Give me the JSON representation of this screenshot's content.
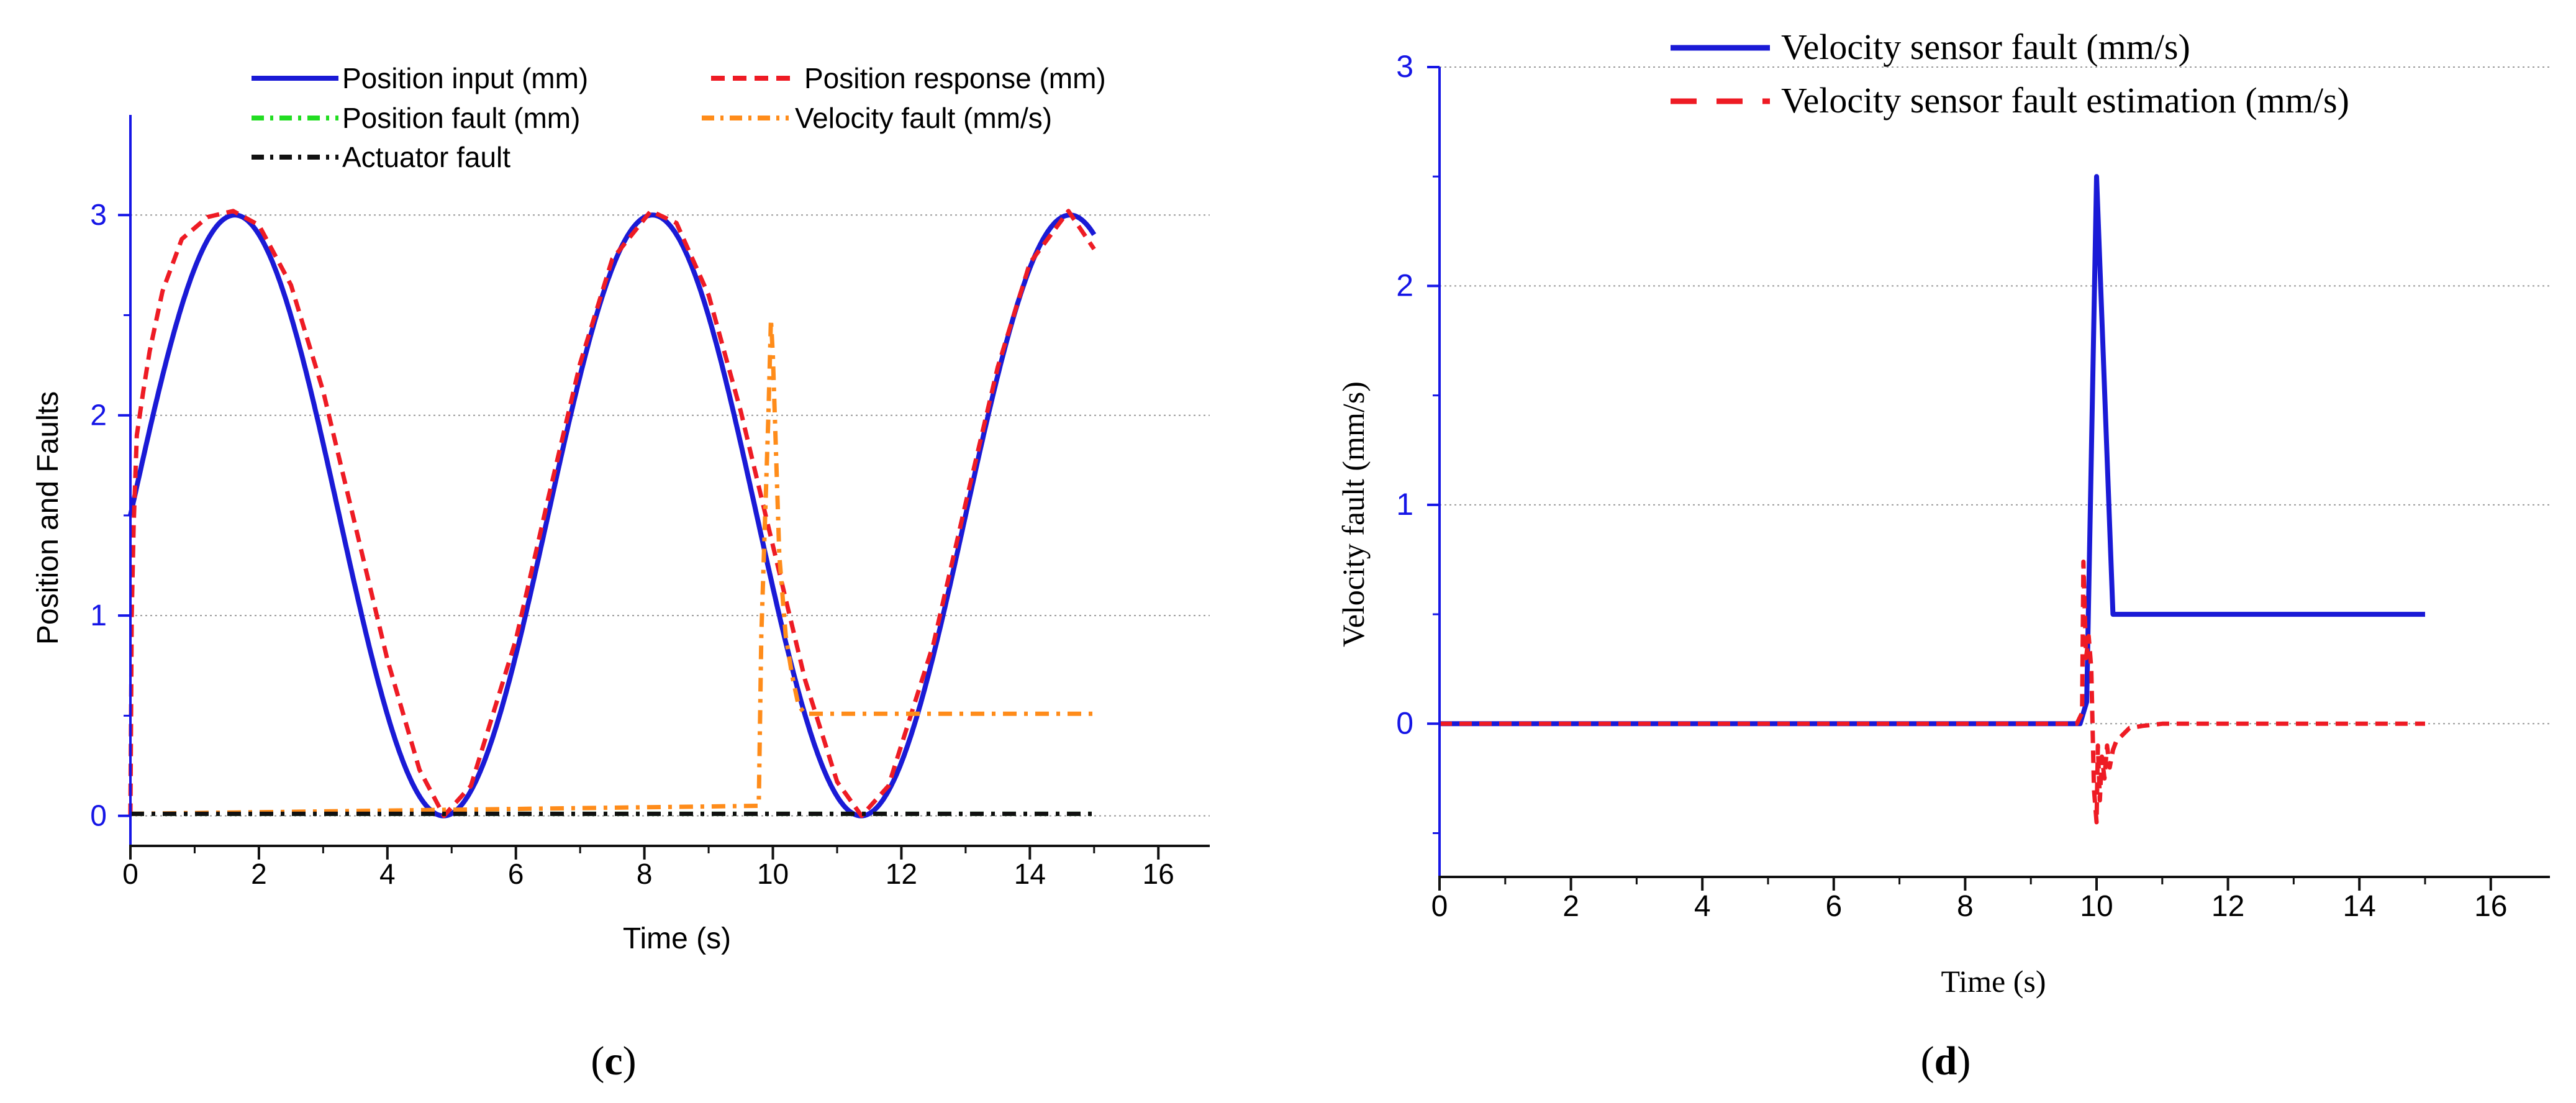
{
  "colors": {
    "axis_blue": "#1515e6",
    "input_blue": "#1a1ad6",
    "response_red": "#ee1b24",
    "pos_fault_green": "#22dd22",
    "vel_fault_orange": "#ff8c1a",
    "act_fault_black": "#111111",
    "grid": "#999999"
  },
  "panels": [
    {
      "label_open": "(",
      "label_letter": "c",
      "label_close": ")"
    },
    {
      "label_open": "(",
      "label_letter": "d",
      "label_close": ")"
    }
  ],
  "chart_data": [
    {
      "type": "line",
      "panel": "c",
      "title": "",
      "xlabel": "Time (s)",
      "ylabel": "Position and Faults",
      "xlim": [
        0,
        16.8
      ],
      "ylim": [
        -0.15,
        3.5
      ],
      "xticks": [
        0,
        2,
        4,
        6,
        8,
        10,
        12,
        14,
        16
      ],
      "xtick_labels": [
        "0",
        "2",
        "4",
        "6",
        "8",
        "10",
        "12",
        "14",
        "16"
      ],
      "yticks": [
        0,
        1,
        2,
        3
      ],
      "ytick_labels": [
        "0",
        "1",
        "2",
        "3"
      ],
      "grid": "horizontal dotted at y ticks",
      "legend_position": "top",
      "series": [
        {
          "name": "Position input (mm)",
          "style": "solid",
          "color": "#1a1ad6",
          "formula": "1.5 + 1.5*sin(0.9667*t)",
          "x_range": [
            0,
            15
          ]
        },
        {
          "name": "Position response (mm)",
          "style": "dashed",
          "color": "#ee1b24",
          "x": [
            0,
            0.02,
            0.05,
            0.1,
            0.2,
            0.3,
            0.5,
            0.8,
            1.2,
            1.6,
            2.0,
            2.5,
            3.0,
            3.5,
            4.0,
            4.5,
            4.88,
            5.3,
            6.0,
            6.5,
            7.0,
            7.5,
            8.1,
            8.5,
            9.0,
            9.5,
            10.0,
            10.5,
            11.0,
            11.38,
            11.8,
            12.5,
            13.0,
            13.5,
            14.0,
            14.6,
            15.0
          ],
          "y": [
            0,
            1.0,
            1.45,
            1.9,
            2.12,
            2.32,
            2.62,
            2.88,
            2.99,
            3.02,
            2.95,
            2.65,
            2.12,
            1.45,
            0.78,
            0.23,
            0.0,
            0.15,
            0.88,
            1.58,
            2.26,
            2.78,
            3.02,
            2.96,
            2.6,
            2.02,
            1.35,
            0.68,
            0.17,
            0.0,
            0.15,
            0.86,
            1.56,
            2.24,
            2.76,
            3.02,
            2.83
          ]
        },
        {
          "name": "Position fault (mm)",
          "style": "dash-dot",
          "color": "#22dd22",
          "x": [
            0,
            15
          ],
          "y": [
            0.01,
            0.01
          ]
        },
        {
          "name": "Velocity fault (mm/s)",
          "style": "dash-dot",
          "color": "#ff8c1a",
          "x": [
            0,
            9.78,
            9.82,
            9.88,
            9.93,
            9.97,
            10.0,
            10.05,
            10.1,
            10.2,
            10.3,
            10.4,
            10.5,
            11.0,
            15.0
          ],
          "y": [
            0.01,
            0.05,
            0.9,
            1.5,
            2.0,
            2.48,
            2.3,
            1.8,
            1.3,
            0.9,
            0.7,
            0.55,
            0.51,
            0.51,
            0.51
          ]
        },
        {
          "name": "Actuator fault",
          "style": "dash-dot",
          "color": "#111111",
          "x": [
            0,
            15
          ],
          "y": [
            0.01,
            0.01
          ]
        }
      ]
    },
    {
      "type": "line",
      "panel": "d",
      "title": "",
      "xlabel": "Time (s)",
      "ylabel": "Velocity fault (mm/s)",
      "xlim": [
        0,
        16.9
      ],
      "ylim": [
        -0.7,
        3.0
      ],
      "xticks": [
        0,
        2,
        4,
        6,
        8,
        10,
        12,
        14,
        16
      ],
      "xtick_labels": [
        "0",
        "2",
        "4",
        "6",
        "8",
        "10",
        "12",
        "14",
        "16"
      ],
      "yticks": [
        0,
        1,
        2,
        3
      ],
      "ytick_labels": [
        "0",
        "1",
        "2",
        "3"
      ],
      "grid": "horizontal dotted at y ticks",
      "legend_position": "top",
      "series": [
        {
          "name": "Velocity sensor fault (mm/s)",
          "style": "solid",
          "color": "#1a1ad6",
          "x": [
            0,
            9.75,
            9.85,
            10.0,
            10.25,
            10.3,
            15.0
          ],
          "y": [
            0,
            0,
            0.1,
            2.5,
            0.5,
            0.5,
            0.5
          ]
        },
        {
          "name": "Velocity sensor fault estimation (mm/s)",
          "style": "dashed",
          "color": "#ee1b24",
          "x": [
            0,
            9.7,
            9.78,
            9.8,
            9.84,
            9.88,
            9.92,
            9.96,
            10.0,
            10.02,
            10.05,
            10.08,
            10.12,
            10.16,
            10.2,
            10.25,
            10.3,
            10.5,
            10.7,
            11.0,
            12.0,
            13.0,
            14.0,
            15.0
          ],
          "y": [
            0,
            0,
            0.05,
            0.74,
            0.3,
            0.4,
            0.25,
            -0.3,
            -0.45,
            -0.1,
            -0.35,
            -0.15,
            -0.25,
            -0.1,
            -0.2,
            -0.12,
            -0.08,
            -0.02,
            -0.01,
            0.0,
            0.0,
            0.0,
            0.0,
            0.0
          ]
        }
      ]
    }
  ]
}
